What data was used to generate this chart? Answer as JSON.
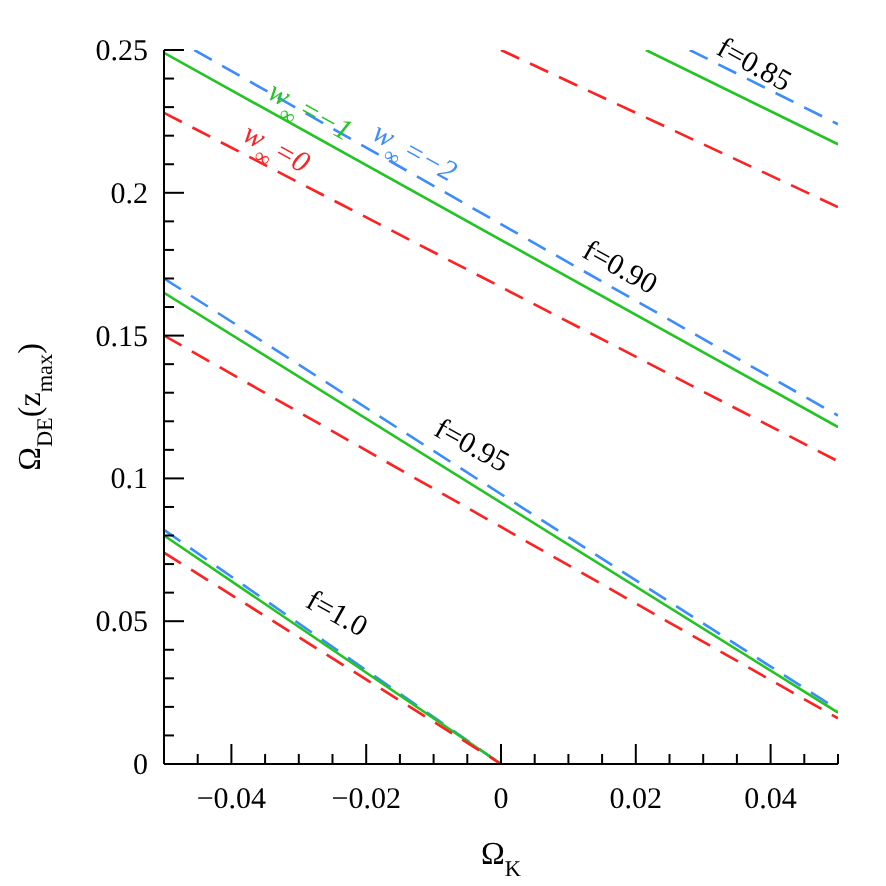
{
  "chart_data": {
    "type": "line",
    "xlabel": "Ω$_{K}$",
    "ylabel": "Ω$_{DE}$(z$_{max}$)",
    "xlim": [
      -0.05,
      0.05
    ],
    "ylim": [
      0,
      0.25
    ],
    "xticks": [
      {
        "value": -0.05,
        "label": null
      },
      {
        "value": -0.045,
        "label": null
      },
      {
        "value": -0.04,
        "label": "−0.04"
      },
      {
        "value": -0.035,
        "label": null
      },
      {
        "value": -0.03,
        "label": null
      },
      {
        "value": -0.025,
        "label": null
      },
      {
        "value": -0.02,
        "label": "−0.02"
      },
      {
        "value": -0.015,
        "label": null
      },
      {
        "value": -0.01,
        "label": null
      },
      {
        "value": -0.005,
        "label": null
      },
      0,
      {
        "value": 0.005,
        "label": null
      },
      {
        "value": 0.01,
        "label": null
      },
      {
        "value": 0.015,
        "label": null
      },
      {
        "value": 0.02,
        "label": "0.02"
      },
      {
        "value": 0.025,
        "label": null
      },
      {
        "value": 0.03,
        "label": null
      },
      {
        "value": 0.035,
        "label": null
      },
      {
        "value": 0.04,
        "label": "0.04"
      },
      {
        "value": 0.045,
        "label": null
      },
      {
        "value": 0.05,
        "label": null
      }
    ],
    "yticks": [
      0,
      {
        "value": 0.01,
        "label": null
      },
      {
        "value": 0.02,
        "label": null
      },
      {
        "value": 0.03,
        "label": null
      },
      {
        "value": 0.04,
        "label": null
      },
      0.05,
      {
        "value": 0.06,
        "label": null
      },
      {
        "value": 0.07,
        "label": null
      },
      {
        "value": 0.08,
        "label": null
      },
      {
        "value": 0.09,
        "label": null
      },
      0.1,
      {
        "value": 0.11,
        "label": null
      },
      {
        "value": 0.12,
        "label": null
      },
      {
        "value": 0.13,
        "label": null
      },
      {
        "value": 0.14,
        "label": null
      },
      0.15,
      {
        "value": 0.16,
        "label": null
      },
      {
        "value": 0.17,
        "label": null
      },
      {
        "value": 0.18,
        "label": null
      },
      {
        "value": 0.19,
        "label": null
      },
      0.2,
      {
        "value": 0.21,
        "label": null
      },
      {
        "value": 0.22,
        "label": null
      },
      {
        "value": 0.23,
        "label": null
      },
      {
        "value": 0.24,
        "label": null
      },
      0.25
    ],
    "series": [
      {
        "color": "#3b8cff",
        "line_style": "dashed",
        "x": [
          -0.05,
          0
        ],
        "values": [
          0.082,
          0
        ]
      },
      {
        "color": "#22c422",
        "line_style": "solid",
        "x": [
          -0.05,
          0
        ],
        "values": [
          0.08,
          0
        ]
      },
      {
        "color": "#ff2020",
        "line_style": "dashed",
        "x": [
          -0.05,
          0
        ],
        "values": [
          0.074,
          0
        ]
      },
      {
        "color": "#3b8cff",
        "line_style": "dashed",
        "x": [
          -0.05,
          0.05
        ],
        "values": [
          0.17,
          0.019
        ]
      },
      {
        "color": "#22c422",
        "line_style": "solid",
        "x": [
          -0.05,
          0.05
        ],
        "values": [
          0.165,
          0.018
        ]
      },
      {
        "color": "#ff2020",
        "line_style": "dashed",
        "x": [
          -0.05,
          0.05
        ],
        "values": [
          0.15,
          0.016
        ]
      },
      {
        "name": "w$_{∞}$=−2",
        "color": "#3b8cff",
        "line_style": "dashed",
        "x": [
          -0.0455,
          0.05
        ],
        "values": [
          0.25,
          0.122
        ]
      },
      {
        "name": "w$_{∞}$=−1",
        "color": "#22c422",
        "line_style": "solid",
        "x": [
          -0.05,
          0.05
        ],
        "values": [
          0.249,
          0.118
        ]
      },
      {
        "name": "w$_{∞}$=0",
        "color": "#ff2020",
        "line_style": "dashed",
        "x": [
          -0.05,
          0.05
        ],
        "values": [
          0.228,
          0.106
        ]
      },
      {
        "color": "#3b8cff",
        "line_style": "dashed",
        "x": [
          0.028,
          0.05
        ],
        "values": [
          0.25,
          0.224
        ]
      },
      {
        "color": "#22c422",
        "line_style": "solid",
        "x": [
          0.0215,
          0.05
        ],
        "values": [
          0.25,
          0.217
        ]
      },
      {
        "color": "#ff2020",
        "line_style": "dashed",
        "x": [
          0,
          0.05
        ],
        "values": [
          0.25,
          0.195
        ]
      }
    ],
    "annotations": [
      "f=1.0",
      "f=0.95",
      "f=0.90",
      "f=0.85"
    ]
  }
}
